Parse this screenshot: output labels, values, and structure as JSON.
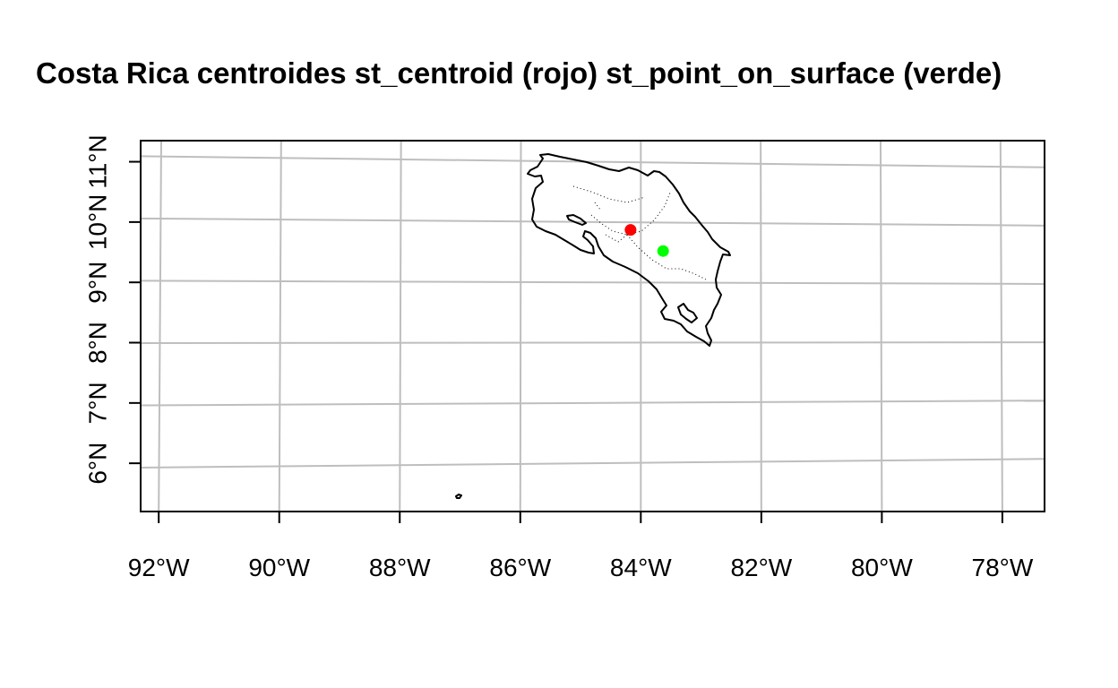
{
  "chart_data": {
    "type": "map",
    "title": "Costa Rica centroides st_centroid (rojo) st_point_on_surface (verde)",
    "xlim": [
      -92.3,
      -77.3
    ],
    "ylim": [
      5.2,
      11.35
    ],
    "x_ticks": [
      {
        "value": -92,
        "label": "92°W"
      },
      {
        "value": -90,
        "label": "90°W"
      },
      {
        "value": -88,
        "label": "88°W"
      },
      {
        "value": -86,
        "label": "86°W"
      },
      {
        "value": -84,
        "label": "84°W"
      },
      {
        "value": -82,
        "label": "82°W"
      },
      {
        "value": -80,
        "label": "80°W"
      },
      {
        "value": -78,
        "label": "78°W"
      }
    ],
    "y_ticks": [
      {
        "value": 6,
        "label": "6°N"
      },
      {
        "value": 7,
        "label": "7°N"
      },
      {
        "value": 8,
        "label": "8°N"
      },
      {
        "value": 9,
        "label": "9°N"
      },
      {
        "value": 10,
        "label": "10°N"
      },
      {
        "value": 11,
        "label": "11°N"
      }
    ],
    "grid": true,
    "points": [
      {
        "name": "st_centroid",
        "lon": -84.17,
        "lat": 9.87,
        "color": "#ff0000"
      },
      {
        "name": "st_point_on_surface",
        "lon": -83.63,
        "lat": 9.52,
        "color": "#00ff00"
      }
    ],
    "outline_color": "#000000",
    "grid_color": "#bebebe"
  }
}
